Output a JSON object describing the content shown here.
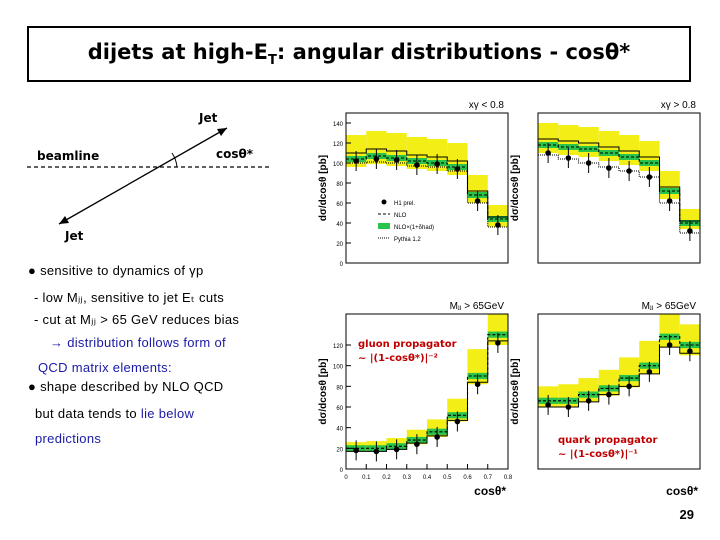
{
  "title": "dijets at high-E",
  "title_sub": "T",
  "title_rest": ": angular distributions - cosθ*",
  "diagram": {
    "jet_top": "Jet",
    "jet_bottom": "Jet",
    "beamline": "beamline",
    "angle": "cosθ*"
  },
  "bullets": {
    "b1": "● sensitive to dynamics of γp",
    "b2": "- low Mⱼⱼ, sensitive to jet Eₜ cuts",
    "b3": "- cut at Mⱼⱼ > 65 GeV reduces bias",
    "b4": "→ distribution follows form of",
    "b5": "QCD matrix elements:",
    "b6": "● shape described by NLO QCD",
    "b7a": "but data tends to ",
    "b7b": "lie below",
    "b8": "predictions"
  },
  "annotations": {
    "gluon1": "gluon propagator",
    "gluon2": "~ |(1-cosθ*)|⁻²",
    "quark1": "quark propagator",
    "quark2": "~ |(1-cosθ*)|⁻¹"
  },
  "page_number": "29",
  "colors": {
    "band": "#f2ee16",
    "nlo_band": "#29c24a",
    "pythia": "#000000",
    "annotation": "#c00000"
  },
  "chart_data": [
    {
      "type": "line",
      "panel": "top-left",
      "title": "xγ < 0.8",
      "ylabel": "dσ/dcosθ [pb]",
      "ylim": [
        0,
        150
      ],
      "yticks": [
        "0",
        "20",
        "40",
        "60",
        "80",
        "100",
        "120",
        "140"
      ],
      "x": [
        0.05,
        0.15,
        0.25,
        0.35,
        0.45,
        0.55,
        0.65,
        0.75
      ],
      "series": [
        {
          "name": "H1 prel.",
          "values": [
            102,
            104,
            103,
            98,
            99,
            94,
            62,
            38
          ]
        },
        {
          "name": "NLO",
          "values": [
            104,
            107,
            105,
            102,
            100,
            96,
            68,
            44
          ]
        },
        {
          "name": "NLO×(1+δhad)",
          "values": [
            110,
            114,
            112,
            108,
            106,
            102,
            72,
            46
          ]
        },
        {
          "name": "Pythia 1.2",
          "values": [
            100,
            101,
            100,
            97,
            96,
            92,
            60,
            36
          ]
        }
      ],
      "band_high": [
        128,
        132,
        130,
        126,
        124,
        120,
        88,
        58
      ],
      "band_low": [
        96,
        99,
        97,
        94,
        92,
        88,
        60,
        36
      ],
      "legend": "bottom-right"
    },
    {
      "type": "line",
      "panel": "top-right",
      "title": "xγ > 0.8",
      "ylabel": "dσ/dcosθ [pb]",
      "ylim": [
        0,
        150
      ],
      "x": [
        0.05,
        0.15,
        0.25,
        0.35,
        0.45,
        0.55,
        0.65,
        0.75
      ],
      "series": [
        {
          "name": "H1 prel.",
          "values": [
            110,
            105,
            100,
            95,
            92,
            86,
            62,
            32
          ]
        },
        {
          "name": "NLO",
          "values": [
            118,
            116,
            114,
            110,
            106,
            100,
            72,
            40
          ]
        },
        {
          "name": "NLO×(1+δhad)",
          "values": [
            124,
            122,
            120,
            116,
            112,
            106,
            76,
            42
          ]
        },
        {
          "name": "Pythia 1.2",
          "values": [
            108,
            104,
            100,
            96,
            92,
            86,
            60,
            30
          ]
        }
      ],
      "band_high": [
        140,
        138,
        136,
        132,
        128,
        122,
        92,
        54
      ],
      "band_low": [
        110,
        108,
        106,
        102,
        98,
        92,
        64,
        34
      ]
    },
    {
      "type": "line",
      "panel": "bottom-left",
      "title": "Mⱼⱼ > 65GeV",
      "ylabel": "dσ/dcosθ [pb]",
      "xlabel": "cosθ*",
      "xticks": [
        "0",
        "0.1",
        "0.2",
        "0.3",
        "0.4",
        "0.5",
        "0.6",
        "0.7",
        "0.8"
      ],
      "ylim": [
        0,
        150
      ],
      "yticks": [
        "0",
        "20",
        "40",
        "60",
        "80",
        "100",
        "120"
      ],
      "x": [
        0.05,
        0.15,
        0.25,
        0.35,
        0.45,
        0.55,
        0.65,
        0.75
      ],
      "series": [
        {
          "name": "H1 prel.",
          "values": [
            18,
            17,
            19,
            24,
            31,
            46,
            82,
            122
          ]
        },
        {
          "name": "NLO",
          "values": [
            20,
            20,
            22,
            28,
            36,
            52,
            90,
            130
          ]
        },
        {
          "name": "Pythia 1.2",
          "values": [
            17,
            17,
            19,
            25,
            32,
            47,
            84,
            124
          ]
        }
      ],
      "band_high": [
        26,
        27,
        30,
        38,
        48,
        68,
        116,
        150
      ],
      "band_low": [
        17,
        17,
        19,
        24,
        31,
        46,
        82,
        120
      ]
    },
    {
      "type": "line",
      "panel": "bottom-right",
      "title": "Mⱼⱼ > 65GeV",
      "ylabel": "dσ/dcosθ [pb]",
      "xlabel": "cosθ*",
      "ylim": [
        0,
        150
      ],
      "x": [
        0.05,
        0.15,
        0.25,
        0.35,
        0.45,
        0.55,
        0.65,
        0.75
      ],
      "series": [
        {
          "name": "H1 prel.",
          "values": [
            62,
            60,
            66,
            72,
            80,
            94,
            120,
            114
          ]
        },
        {
          "name": "NLO",
          "values": [
            66,
            66,
            72,
            78,
            88,
            100,
            128,
            120
          ]
        },
        {
          "name": "Pythia 1.2",
          "values": [
            60,
            60,
            65,
            72,
            80,
            92,
            118,
            112
          ]
        }
      ],
      "band_high": [
        80,
        82,
        88,
        96,
        108,
        124,
        150,
        140
      ],
      "band_low": [
        60,
        60,
        65,
        71,
        79,
        92,
        118,
        110
      ]
    }
  ]
}
